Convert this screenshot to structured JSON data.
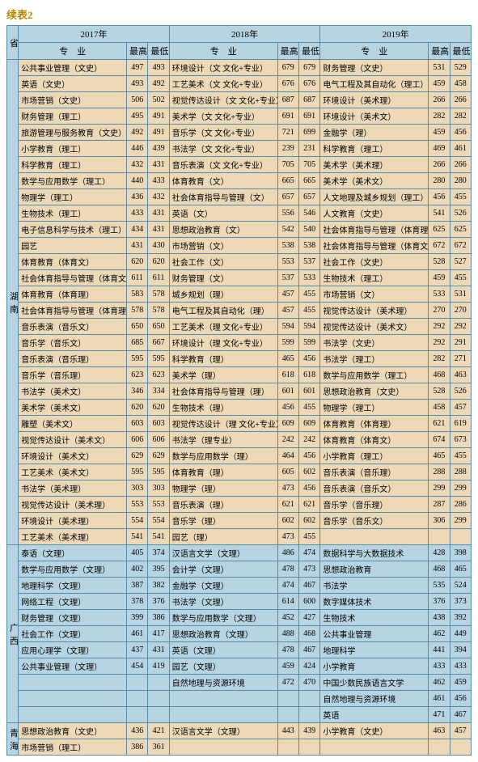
{
  "caption": "续表2",
  "years": [
    "2017年",
    "2018年",
    "2019年"
  ],
  "head_major": "专　业",
  "head_high": "最高分",
  "head_low": "最低分",
  "provLabel": "省份",
  "hunan": {
    "name": "湖南",
    "rows": [
      {
        "m17": "公共事业管理（文史）",
        "h17": "497",
        "l17": "493",
        "m18": "环境设计（文 文化+专业）",
        "h18": "679",
        "l18": "679",
        "m19": "财务管理（文史）",
        "h19": "531",
        "l19": "529"
      },
      {
        "m17": "英语（文史）",
        "h17": "493",
        "l17": "492",
        "m18": "工艺美术（文 文化+专业）",
        "h18": "676",
        "l18": "676",
        "m19": "电气工程及其自动化（理工）",
        "h19": "459",
        "l19": "458"
      },
      {
        "m17": "市场营销（文史）",
        "h17": "506",
        "l17": "502",
        "m18": "视觉传达设计（文 文化+专业）",
        "h18": "687",
        "l18": "687",
        "m19": "环境设计（美术理）",
        "h19": "266",
        "l19": "266"
      },
      {
        "m17": "财务管理（理工）",
        "h17": "495",
        "l17": "491",
        "m18": "美术学（文 文化+专业）",
        "h18": "691",
        "l18": "691",
        "m19": "环境设计（美术文）",
        "h19": "282",
        "l19": "282"
      },
      {
        "m17": "旅游管理与服务教育（文史）",
        "h17": "492",
        "l17": "491",
        "m18": "音乐学（文 文化+专业）",
        "h18": "721",
        "l18": "699",
        "m19": "金融学（理）",
        "h19": "459",
        "l19": "456"
      },
      {
        "m17": "小学教育（理工）",
        "h17": "446",
        "l17": "439",
        "m18": "书法学（文 文化+专业）",
        "h18": "239",
        "l18": "231",
        "m19": "科学教育（理工）",
        "h19": "469",
        "l19": "461"
      },
      {
        "m17": "科学教育（理工）",
        "h17": "432",
        "l17": "431",
        "m18": "音乐表演（文 文化+专业）",
        "h18": "705",
        "l18": "705",
        "m19": "美术学（美术理）",
        "h19": "266",
        "l19": "266"
      },
      {
        "m17": "数学与应用数学（理工）",
        "h17": "440",
        "l17": "433",
        "m18": "体育教育（文）",
        "h18": "665",
        "l18": "665",
        "m19": "美术学（美术文）",
        "h19": "280",
        "l19": "280"
      },
      {
        "m17": "物理学（理工）",
        "h17": "436",
        "l17": "432",
        "m18": "社会体育指导与管理（文）",
        "h18": "657",
        "l18": "657",
        "m19": "人文地理及城乡规划（理工）",
        "h19": "456",
        "l19": "455"
      },
      {
        "m17": "生物技术（理工）",
        "h17": "433",
        "l17": "431",
        "m18": "英语（文）",
        "h18": "556",
        "l18": "546",
        "m19": "人文教育（文史）",
        "h19": "541",
        "l19": "526"
      },
      {
        "m17": "电子信息科学与技术（理工）",
        "h17": "434",
        "l17": "431",
        "m18": "思想政治教育（文）",
        "h18": "542",
        "l18": "540",
        "m19": "社会体育指导与管理（体育理）",
        "h19": "625",
        "l19": "625"
      },
      {
        "m17": "园艺",
        "h17": "431",
        "l17": "430",
        "m18": "市场营销（文）",
        "h18": "538",
        "l18": "538",
        "m19": "社会体育指导与管理（体育文）",
        "h19": "672",
        "l19": "672"
      },
      {
        "m17": "体育教育（体育文）",
        "h17": "620",
        "l17": "620",
        "m18": "社会工作（文）",
        "h18": "553",
        "l18": "537",
        "m19": "社会工作（文史）",
        "h19": "528",
        "l19": "527"
      },
      {
        "m17": "社会体育指导与管理（体育文）",
        "h17": "611",
        "l17": "611",
        "m18": "财务管理（文）",
        "h18": "537",
        "l18": "533",
        "m19": "生物技术（理工）",
        "h19": "459",
        "l19": "455"
      },
      {
        "m17": "体育教育（体育理）",
        "h17": "583",
        "l17": "578",
        "m18": "城乡规划（理）",
        "h18": "457",
        "l18": "455",
        "m19": "市场营销（文）",
        "h19": "533",
        "l19": "531"
      },
      {
        "m17": "社会体育指导与管理（体育理）",
        "h17": "578",
        "l17": "578",
        "m18": "电气工程及其自动化（理）",
        "h18": "457",
        "l18": "455",
        "m19": "视觉传达设计（美术理）",
        "h19": "270",
        "l19": "270"
      },
      {
        "m17": "音乐表演（音乐文）",
        "h17": "650",
        "l17": "650",
        "m18": "工艺美术（理 文化+专业）",
        "h18": "594",
        "l18": "594",
        "m19": "视觉传达设计（美术文）",
        "h19": "292",
        "l19": "292"
      },
      {
        "m17": "音乐学（音乐文）",
        "h17": "685",
        "l17": "667",
        "m18": "环境设计（理 文化+专业）",
        "h18": "599",
        "l18": "599",
        "m19": "书法学（文史）",
        "h19": "292",
        "l19": "291"
      },
      {
        "m17": "音乐表演（音乐理）",
        "h17": "595",
        "l17": "595",
        "m18": "科学教育（理）",
        "h18": "465",
        "l18": "456",
        "m19": "书法学（理工）",
        "h19": "282",
        "l19": "271"
      },
      {
        "m17": "音乐学（音乐理）",
        "h17": "623",
        "l17": "623",
        "m18": "美术学（理）",
        "h18": "618",
        "l18": "618",
        "m19": "数学与应用数学（理工）",
        "h19": "468",
        "l19": "463"
      },
      {
        "m17": "书法学（美术文）",
        "h17": "346",
        "l17": "334",
        "m18": "社会体育指导与管理（理）",
        "h18": "601",
        "l18": "601",
        "m19": "思想政治教育（文史）",
        "h19": "528",
        "l19": "526"
      },
      {
        "m17": "美术学（美术文）",
        "h17": "620",
        "l17": "620",
        "m18": "生物技术（理）",
        "h18": "456",
        "l18": "455",
        "m19": "物理学（理工）",
        "h19": "458",
        "l19": "457"
      },
      {
        "m17": "雕塑（美术文）",
        "h17": "603",
        "l17": "603",
        "m18": "视觉传达设计（理 文化+专业）",
        "h18": "609",
        "l18": "609",
        "m19": "体育教育（体育理）",
        "h19": "621",
        "l19": "619"
      },
      {
        "m17": "视觉传达设计（美术文）",
        "h17": "606",
        "l17": "606",
        "m18": "书法学（理专业）",
        "h18": "242",
        "l18": "242",
        "m19": "体育教育（体育文）",
        "h19": "674",
        "l19": "673"
      },
      {
        "m17": "环境设计（美术文）",
        "h17": "629",
        "l17": "629",
        "m18": "数学与应用数学（理）",
        "h18": "464",
        "l18": "456",
        "m19": "小学教育（理工）",
        "h19": "465",
        "l19": "455"
      },
      {
        "m17": "工艺美术（美术文）",
        "h17": "595",
        "l17": "595",
        "m18": "体育教育（理）",
        "h18": "605",
        "l18": "602",
        "m19": "音乐表演（音乐理）",
        "h19": "288",
        "l19": "288"
      },
      {
        "m17": "书法学（美术理）",
        "h17": "303",
        "l17": "303",
        "m18": "物理学（理）",
        "h18": "473",
        "l18": "456",
        "m19": "音乐表演（音乐文）",
        "h19": "299",
        "l19": "299"
      },
      {
        "m17": "视觉传达设计（美术理）",
        "h17": "553",
        "l17": "553",
        "m18": "音乐表演（理）",
        "h18": "621",
        "l18": "621",
        "m19": "音乐学（音乐理）",
        "h19": "287",
        "l19": "286"
      },
      {
        "m17": "环境设计（美术理）",
        "h17": "554",
        "l17": "554",
        "m18": "音乐学（理）",
        "h18": "602",
        "l18": "602",
        "m19": "音乐学（音乐文）",
        "h19": "306",
        "l19": "299"
      },
      {
        "m17": "工艺美术（美术理）",
        "h17": "541",
        "l17": "541",
        "m18": "园艺（理）",
        "h18": "473",
        "l18": "455",
        "m19": "",
        "h19": "",
        "l19": ""
      }
    ]
  },
  "guangxi": {
    "name": "广西",
    "rows": [
      {
        "m17": "泰语（文理）",
        "h17": "405",
        "l17": "374",
        "m18": "汉语言文学（文理）",
        "h18": "486",
        "l18": "474",
        "m19": "数据科学与大数据技术",
        "h19": "428",
        "l19": "398"
      },
      {
        "m17": "数学与应用数学（文理）",
        "h17": "402",
        "l17": "395",
        "m18": "会计学（文理）",
        "h18": "478",
        "l18": "473",
        "m19": "思想政治教育",
        "h19": "468",
        "l19": "465"
      },
      {
        "m17": "地理科学（文理）",
        "h17": "387",
        "l17": "382",
        "m18": "金融学（文理）",
        "h18": "474",
        "l18": "467",
        "m19": "书法学",
        "h19": "535",
        "l19": "524"
      },
      {
        "m17": "网络工程（文理）",
        "h17": "378",
        "l17": "376",
        "m18": "书法学（文理）",
        "h18": "614",
        "l18": "600",
        "m19": "数字媒体技术",
        "h19": "376",
        "l19": "373"
      },
      {
        "m17": "财务管理（文理）",
        "h17": "399",
        "l17": "386",
        "m18": "数学与应用数学（文理）",
        "h18": "452",
        "l18": "427",
        "m19": "生物技术",
        "h19": "438",
        "l19": "392"
      },
      {
        "m17": "社会工作（文理）",
        "h17": "461",
        "l17": "417",
        "m18": "思想政治教育（文理）",
        "h18": "488",
        "l18": "468",
        "m19": "公共事业管理",
        "h19": "462",
        "l19": "449"
      },
      {
        "m17": "应用心理学（文理）",
        "h17": "437",
        "l17": "431",
        "m18": "英语（文理）",
        "h18": "478",
        "l18": "467",
        "m19": "地理科学",
        "h19": "441",
        "l19": "394"
      },
      {
        "m17": "公共事业管理（文理）",
        "h17": "454",
        "l17": "419",
        "m18": "园艺（文理）",
        "h18": "459",
        "l18": "424",
        "m19": "小学教育",
        "h19": "433",
        "l19": "433"
      },
      {
        "m17": "",
        "h17": "",
        "l17": "",
        "m18": "自然地理与资源环境",
        "h18": "472",
        "l18": "470",
        "m19": "中国少数民族语言文学",
        "h19": "462",
        "l19": "459"
      },
      {
        "m17": "",
        "h17": "",
        "l17": "",
        "m18": "",
        "h18": "",
        "l18": "",
        "m19": "自然地理与资源环境",
        "h19": "461",
        "l19": "456"
      },
      {
        "m17": "",
        "h17": "",
        "l17": "",
        "m18": "",
        "h18": "",
        "l18": "",
        "m19": "英语",
        "h19": "471",
        "l19": "467"
      }
    ]
  },
  "qinghai": {
    "name": "青海",
    "rows": [
      {
        "m17": "思想政治教育（文史）",
        "h17": "436",
        "l17": "421",
        "m18": "汉语言文学（文理）",
        "h18": "443",
        "l18": "439",
        "m19": "小学教育（文史）",
        "h19": "463",
        "l19": "457"
      },
      {
        "m17": "市场营销（理工）",
        "h17": "386",
        "l17": "361",
        "m18": "",
        "h18": "",
        "l18": "",
        "m19": "",
        "h19": "",
        "l19": ""
      }
    ]
  }
}
